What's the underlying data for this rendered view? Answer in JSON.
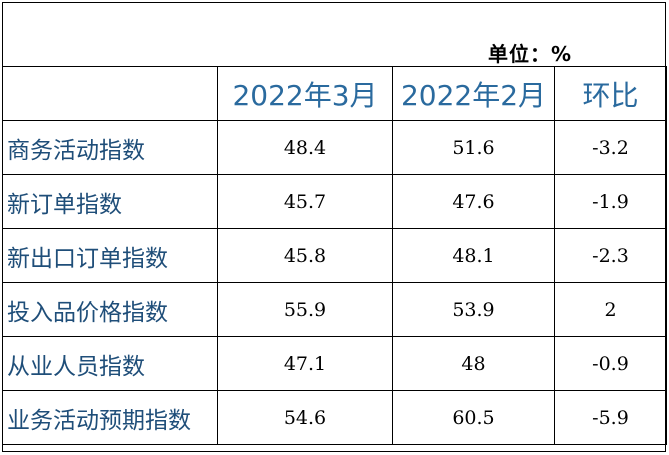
{
  "unit_label": "单位：%",
  "headers": [
    "",
    "2022年3月",
    "2022年2月",
    "环比"
  ],
  "rows": [
    {
      "name": "商务活动指数",
      "mar": "48.4",
      "feb": "51.6",
      "mom": "-3.2"
    },
    {
      "name": "新订单指数",
      "mar": "45.7",
      "feb": "47.6",
      "mom": "-1.9"
    },
    {
      "name": "新出口订单指数",
      "mar": "45.8",
      "feb": "48.1",
      "mom": "-2.3"
    },
    {
      "name": "投入品价格指数",
      "mar": "55.9",
      "feb": "53.9",
      "mom": "2"
    },
    {
      "name": "从业人员指数",
      "mar": "47.1",
      "feb": "48",
      "mom": "-0.9"
    },
    {
      "name": "业务活动预期指数",
      "mar": "54.6",
      "feb": "60.5",
      "mom": "-5.9"
    }
  ]
}
